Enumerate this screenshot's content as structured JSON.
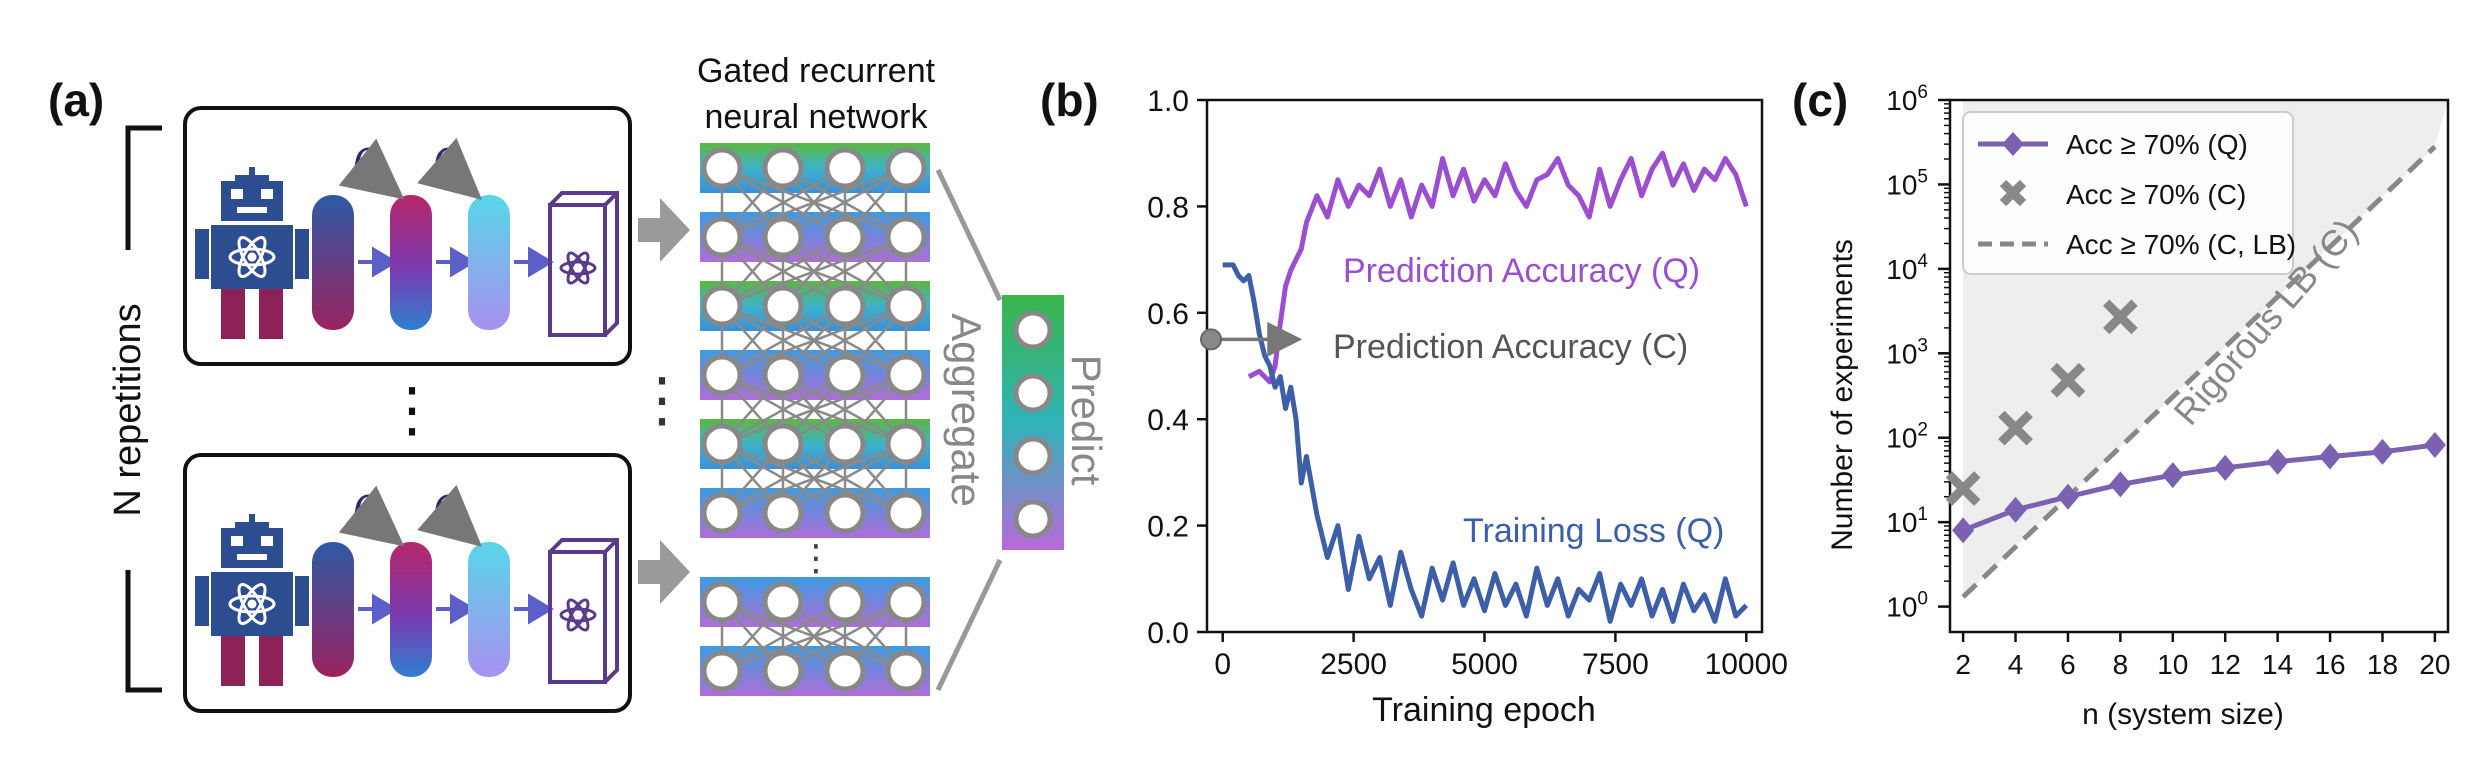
{
  "panel_a": {
    "label": "(a)",
    "repetitions_label": "N repetitions",
    "rho_symbol": "ρ",
    "ellipsis": "⋮",
    "gru_title_line1": "Gated recurrent",
    "gru_title_line2": "neural network",
    "aggregate_label": "Aggregate",
    "predict_label": "Predict",
    "colors": {
      "robot": "#2c4d8f",
      "robot_legs": "#8c2257",
      "box_outline": "#5a3a8a",
      "arrow": "#5b5fc7",
      "gray_arrow": "#999999",
      "node_stroke": "#888888"
    },
    "icons": [
      "robot-icon",
      "atom-icon",
      "quantum-state-icon",
      "measurement-box-icon"
    ]
  },
  "panel_b": {
    "label": "(b)",
    "annotations": {
      "acc_q": "Prediction Accuracy (Q)",
      "acc_c": "Prediction Accuracy (C)",
      "loss_q": "Training Loss (Q)"
    },
    "colors": {
      "acc_q": "#9b4fd0",
      "loss_q": "#3d5fa8",
      "acc_c": "#777777"
    }
  },
  "panel_c": {
    "label": "(c)",
    "rotated_text": "Rigorous LB (C)",
    "colors": {
      "q": "#7a62b0",
      "c": "#888888",
      "lb": "#888888",
      "shade": "#eeeeee"
    }
  },
  "chart_data": [
    {
      "type": "line",
      "xlabel": "Training epoch",
      "ylabel": "",
      "xlim": [
        -300,
        10300
      ],
      "ylim": [
        0.0,
        1.0
      ],
      "xticks": [
        0,
        2500,
        5000,
        7500,
        10000
      ],
      "yticks": [
        0.0,
        0.2,
        0.4,
        0.6,
        0.8,
        1.0
      ],
      "ytick_labels": [
        "0.0",
        "0.2",
        "0.4",
        "0.6",
        "0.8",
        "1.0"
      ],
      "grid": false,
      "series": [
        {
          "name": "Prediction Accuracy (Q)",
          "x": [
            500,
            700,
            900,
            1000,
            1100,
            1200,
            1300,
            1400,
            1500,
            1600,
            1800,
            2000,
            2200,
            2400,
            2600,
            2800,
            3000,
            3200,
            3400,
            3600,
            3800,
            4000,
            4200,
            4400,
            4600,
            4800,
            5000,
            5200,
            5400,
            5600,
            5800,
            6000,
            6200,
            6400,
            6600,
            6800,
            7000,
            7200,
            7400,
            7600,
            7800,
            8000,
            8200,
            8400,
            8600,
            8800,
            9000,
            9200,
            9400,
            9600,
            9800,
            10000
          ],
          "y": [
            0.48,
            0.49,
            0.47,
            0.5,
            0.58,
            0.65,
            0.68,
            0.7,
            0.72,
            0.77,
            0.82,
            0.78,
            0.85,
            0.8,
            0.84,
            0.82,
            0.87,
            0.8,
            0.85,
            0.78,
            0.84,
            0.8,
            0.89,
            0.82,
            0.87,
            0.81,
            0.85,
            0.82,
            0.88,
            0.83,
            0.8,
            0.85,
            0.86,
            0.89,
            0.84,
            0.82,
            0.78,
            0.87,
            0.8,
            0.85,
            0.89,
            0.82,
            0.87,
            0.9,
            0.84,
            0.88,
            0.83,
            0.87,
            0.85,
            0.89,
            0.86,
            0.8
          ]
        },
        {
          "name": "Training Loss (Q)",
          "x": [
            0,
            200,
            300,
            400,
            500,
            600,
            700,
            800,
            900,
            1000,
            1100,
            1200,
            1300,
            1400,
            1500,
            1600,
            1800,
            2000,
            2200,
            2400,
            2600,
            2800,
            3000,
            3200,
            3400,
            3600,
            3800,
            4000,
            4200,
            4400,
            4600,
            4800,
            5000,
            5200,
            5400,
            5600,
            5800,
            6000,
            6200,
            6400,
            6600,
            6800,
            7000,
            7200,
            7400,
            7600,
            7800,
            8000,
            8200,
            8400,
            8600,
            8800,
            9000,
            9200,
            9400,
            9600,
            9800,
            10000
          ],
          "y": [
            0.69,
            0.69,
            0.67,
            0.66,
            0.67,
            0.62,
            0.56,
            0.52,
            0.5,
            0.46,
            0.48,
            0.42,
            0.46,
            0.4,
            0.28,
            0.33,
            0.22,
            0.14,
            0.2,
            0.08,
            0.18,
            0.1,
            0.14,
            0.05,
            0.15,
            0.08,
            0.03,
            0.12,
            0.06,
            0.13,
            0.05,
            0.1,
            0.04,
            0.11,
            0.05,
            0.09,
            0.03,
            0.12,
            0.05,
            0.1,
            0.03,
            0.08,
            0.06,
            0.11,
            0.02,
            0.09,
            0.05,
            0.1,
            0.03,
            0.08,
            0.02,
            0.09,
            0.04,
            0.07,
            0.02,
            0.1,
            0.03,
            0.05
          ]
        },
        {
          "name": "Prediction Accuracy (C)",
          "x": [
            -300,
            1500
          ],
          "y": [
            0.55,
            0.55
          ]
        }
      ]
    },
    {
      "type": "line",
      "xlabel": "n (system size)",
      "ylabel": "Number of experiments",
      "yscale": "log",
      "xlim": [
        1.5,
        20.5
      ],
      "ylim": [
        0.5,
        1000000
      ],
      "xticks": [
        2,
        4,
        6,
        8,
        10,
        12,
        14,
        16,
        18,
        20
      ],
      "ytick_exponents": [
        "0",
        "1",
        "2",
        "3",
        "4",
        "5",
        "6"
      ],
      "ytick_base": "10",
      "grid": false,
      "legend": "top-left",
      "series": [
        {
          "name": "Acc ≥ 70% (Q)",
          "marker": "diamond",
          "x": [
            2,
            4,
            6,
            8,
            10,
            12,
            14,
            16,
            18,
            20
          ],
          "y": [
            8,
            14,
            20,
            28,
            36,
            44,
            52,
            60,
            68,
            82
          ]
        },
        {
          "name": "Acc ≥ 70% (C)",
          "marker": "x",
          "x": [
            2,
            4,
            6,
            8
          ],
          "y": [
            25,
            130,
            480,
            2700
          ]
        },
        {
          "name": "Acc ≥ 70% (C, LB)",
          "style": "dashed",
          "x": [
            2,
            20
          ],
          "y": [
            1.3,
            280000
          ]
        }
      ]
    }
  ]
}
